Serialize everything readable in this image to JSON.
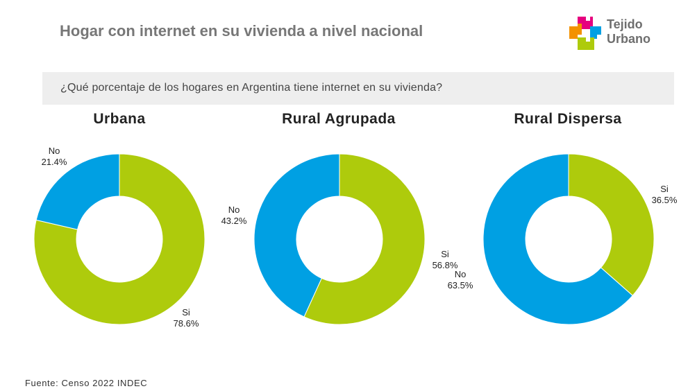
{
  "header": {
    "title": "Hogar con internet en su vivienda a nivel nacional"
  },
  "logo": {
    "line1": "Tejido",
    "line2": "Urbano",
    "colors": [
      "#e6007e",
      "#f39200",
      "#00a0e3",
      "#aecb0c"
    ]
  },
  "question": "¿Qué porcentaje de los hogares en Argentina tiene internet en su vivienda?",
  "source": "Fuente: Censo 2022 INDEC",
  "colors": {
    "si": "#aecb0c",
    "no": "#00a0e3"
  },
  "chart_data": [
    {
      "type": "pie",
      "title": "Urbana",
      "categories": [
        "Si",
        "No"
      ],
      "values": [
        78.6,
        21.4
      ],
      "value_labels": [
        "78.6%",
        "21.4%"
      ]
    },
    {
      "type": "pie",
      "title": "Rural Agrupada",
      "categories": [
        "Si",
        "No"
      ],
      "values": [
        56.8,
        43.2
      ],
      "value_labels": [
        "56.8%",
        "43.2%"
      ]
    },
    {
      "type": "pie",
      "title": "Rural Dispersa",
      "categories": [
        "Si",
        "No"
      ],
      "values": [
        36.5,
        63.5
      ],
      "value_labels": [
        "36.5%",
        "63.5%"
      ]
    }
  ]
}
